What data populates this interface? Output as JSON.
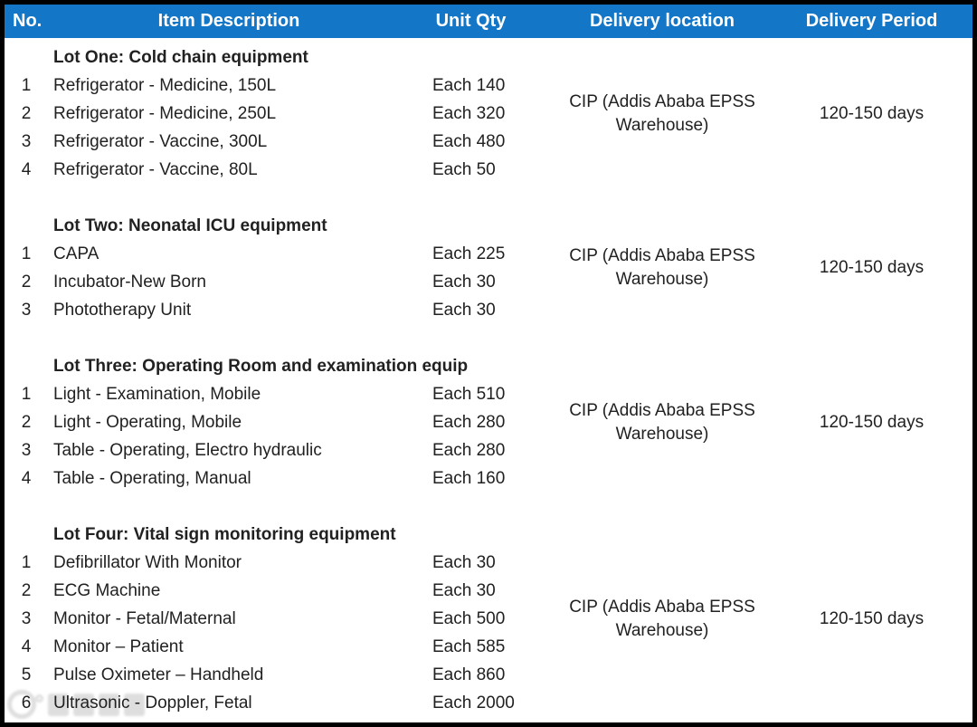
{
  "header": {
    "columns": [
      "No.",
      "Item Description",
      "Unit Qty",
      "Delivery location",
      "Delivery Period"
    ]
  },
  "table": {
    "lots": [
      {
        "heading": "Lot One: Cold chain equipment",
        "items": [
          {
            "no": "1",
            "description": "Refrigerator - Medicine, 150L",
            "unit_qty": "Each 140"
          },
          {
            "no": "2",
            "description": "Refrigerator - Medicine, 250L",
            "unit_qty": "Each 320"
          },
          {
            "no": "3",
            "description": "Refrigerator - Vaccine, 300L",
            "unit_qty": "Each 480"
          },
          {
            "no": "4",
            "description": "Refrigerator - Vaccine, 80L",
            "unit_qty": "Each 50"
          }
        ],
        "delivery_location": "CIP (Addis Ababa EPSS Warehouse)",
        "delivery_period": "120-150 days"
      },
      {
        "heading": "Lot Two: Neonatal ICU equipment",
        "items": [
          {
            "no": "1",
            "description": "CAPA",
            "unit_qty": "Each 225"
          },
          {
            "no": "2",
            "description": "Incubator-New Born",
            "unit_qty": "Each 30"
          },
          {
            "no": "3",
            "description": "Phototherapy Unit",
            "unit_qty": "Each 30"
          }
        ],
        "delivery_location": "CIP (Addis Ababa EPSS Warehouse)",
        "delivery_period": "120-150 days"
      },
      {
        "heading": "Lot Three: Operating Room and examination equip",
        "items": [
          {
            "no": "1",
            "description": "Light - Examination, Mobile",
            "unit_qty": "Each 510"
          },
          {
            "no": "2",
            "description": "Light - Operating, Mobile",
            "unit_qty": "Each 280"
          },
          {
            "no": "3",
            "description": "Table - Operating, Electro hydraulic",
            "unit_qty": "Each 280"
          },
          {
            "no": "4",
            "description": "Table - Operating, Manual",
            "unit_qty": "Each 160"
          }
        ],
        "delivery_location": "CIP (Addis Ababa EPSS Warehouse)",
        "delivery_period": "120-150 days"
      },
      {
        "heading": "Lot Four: Vital sign monitoring equipment",
        "items": [
          {
            "no": "1",
            "description": "Defibrillator With Monitor",
            "unit_qty": "Each 30"
          },
          {
            "no": "2",
            "description": "ECG Machine",
            "unit_qty": "Each 30"
          },
          {
            "no": "3",
            "description": "Monitor - Fetal/Maternal",
            "unit_qty": "Each 500"
          },
          {
            "no": "4",
            "description": "Monitor – Patient",
            "unit_qty": "Each 585"
          },
          {
            "no": "5",
            "description": "Pulse Oximeter – Handheld",
            "unit_qty": "Each 860"
          },
          {
            "no": "6",
            "description": "Ultrasonic - Doppler, Fetal",
            "unit_qty": "Each 2000"
          }
        ],
        "delivery_location": "CIP (Addis Ababa EPSS Warehouse)",
        "delivery_period": "120-150 days"
      }
    ]
  },
  "watermark": {
    "visible": true,
    "appearance": "illegible light-gray stamp: small ring logo followed by four blurred CJK-like glyphs"
  },
  "colors": {
    "header_bg": "#1476C6",
    "header_text": "#FFFFFF",
    "body_text": "#212121",
    "border": "#000000",
    "watermark_gray": "#C4C4C4"
  }
}
